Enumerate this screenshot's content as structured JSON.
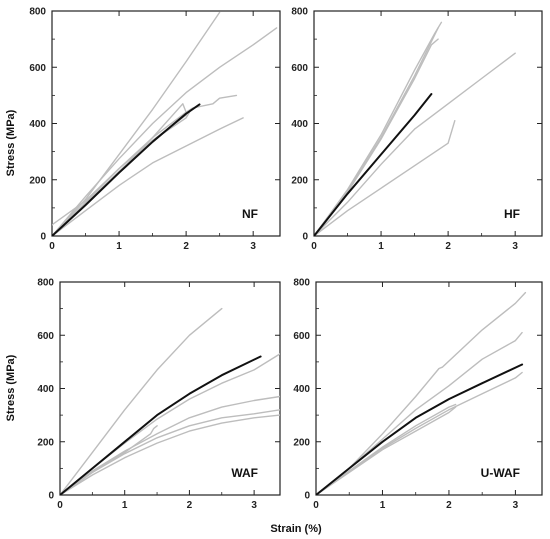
{
  "figure": {
    "ylabel": "Stress (MPa)",
    "xlabel": "Strain (%)"
  },
  "chart_data": [
    {
      "type": "line",
      "panel": "NF",
      "xlim": [
        0,
        3.4
      ],
      "ylim": [
        0,
        800
      ],
      "xticks": [
        0,
        1,
        2,
        3
      ],
      "yticks": [
        0,
        200,
        400,
        600,
        800
      ],
      "series": [
        {
          "role": "specimen",
          "points": [
            [
              0,
              0
            ],
            [
              0.5,
              130
            ],
            [
              1.0,
              290
            ],
            [
              1.5,
              450
            ],
            [
              2.0,
              620
            ],
            [
              2.5,
              795
            ]
          ]
        },
        {
          "role": "specimen",
          "points": [
            [
              0,
              0
            ],
            [
              0.5,
              140
            ],
            [
              1.0,
              275
            ],
            [
              1.5,
              400
            ],
            [
              2.0,
              510
            ],
            [
              2.5,
              600
            ],
            [
              3.0,
              680
            ],
            [
              3.35,
              740
            ]
          ]
        },
        {
          "role": "specimen",
          "points": [
            [
              0,
              0
            ],
            [
              0.5,
              120
            ],
            [
              1.0,
              240
            ],
            [
              1.5,
              350
            ],
            [
              2.0,
              440
            ],
            [
              2.1,
              455
            ],
            [
              2.4,
              470
            ],
            [
              2.5,
              490
            ],
            [
              2.75,
              500
            ]
          ]
        },
        {
          "role": "specimen",
          "points": [
            [
              0,
              0
            ],
            [
              0.5,
              115
            ],
            [
              1.0,
              230
            ],
            [
              1.5,
              340
            ],
            [
              2.0,
              420
            ],
            [
              2.05,
              440
            ]
          ]
        },
        {
          "role": "specimen",
          "points": [
            [
              0,
              0
            ],
            [
              0.5,
              110
            ],
            [
              1.0,
              225
            ],
            [
              1.5,
              350
            ],
            [
              1.95,
              470
            ],
            [
              2.0,
              440
            ]
          ]
        },
        {
          "role": "specimen",
          "points": [
            [
              0,
              0
            ],
            [
              0.5,
              90
            ],
            [
              1.0,
              180
            ],
            [
              1.5,
              260
            ],
            [
              2.0,
              320
            ],
            [
              2.5,
              380
            ],
            [
              2.85,
              420
            ]
          ]
        },
        {
          "role": "specimen",
          "points": [
            [
              0,
              40
            ],
            [
              0.5,
              125
            ],
            [
              1.0,
              240
            ],
            [
              1.5,
              340
            ],
            [
              2.0,
              430
            ]
          ]
        },
        {
          "role": "average",
          "points": [
            [
              0,
              0
            ],
            [
              0.5,
              110
            ],
            [
              1.0,
              225
            ],
            [
              1.5,
              335
            ],
            [
              2.0,
              435
            ],
            [
              2.2,
              468
            ]
          ]
        }
      ]
    },
    {
      "type": "line",
      "panel": "HF",
      "xlim": [
        0,
        3.4
      ],
      "ylim": [
        0,
        800
      ],
      "xticks": [
        0,
        1,
        2,
        3
      ],
      "yticks": [
        0,
        200,
        400,
        600,
        800
      ],
      "series": [
        {
          "role": "specimen",
          "points": [
            [
              0,
              0
            ],
            [
              0.5,
              160
            ],
            [
              1.0,
              350
            ],
            [
              1.5,
              570
            ],
            [
              1.85,
              740
            ]
          ]
        },
        {
          "role": "specimen",
          "points": [
            [
              0,
              0
            ],
            [
              0.5,
              165
            ],
            [
              1.0,
              360
            ],
            [
              1.5,
              590
            ],
            [
              1.8,
              720
            ],
            [
              1.9,
              760
            ]
          ]
        },
        {
          "role": "specimen",
          "points": [
            [
              0,
              0
            ],
            [
              0.5,
              155
            ],
            [
              1.0,
              345
            ],
            [
              1.5,
              560
            ],
            [
              1.75,
              680
            ],
            [
              1.85,
              700
            ]
          ]
        },
        {
          "role": "specimen",
          "points": [
            [
              0,
              0
            ],
            [
              0.5,
              120
            ],
            [
              1.0,
              255
            ],
            [
              1.5,
              380
            ],
            [
              2.0,
              470
            ],
            [
              2.5,
              560
            ],
            [
              3.0,
              650
            ]
          ]
        },
        {
          "role": "specimen",
          "points": [
            [
              0,
              0
            ],
            [
              0.5,
              90
            ],
            [
              1.0,
              170
            ],
            [
              1.5,
              250
            ],
            [
              2.0,
              330
            ],
            [
              2.1,
              410
            ]
          ]
        },
        {
          "role": "average",
          "points": [
            [
              0,
              0
            ],
            [
              0.5,
              150
            ],
            [
              1.0,
              290
            ],
            [
              1.5,
              430
            ],
            [
              1.75,
              505
            ]
          ]
        }
      ]
    },
    {
      "type": "line",
      "panel": "WAF",
      "xlim": [
        0,
        3.4
      ],
      "ylim": [
        0,
        800
      ],
      "xticks": [
        0,
        1,
        2,
        3
      ],
      "yticks": [
        0,
        200,
        400,
        600,
        800
      ],
      "series": [
        {
          "role": "specimen",
          "points": [
            [
              0,
              0
            ],
            [
              0.5,
              160
            ],
            [
              1.0,
              320
            ],
            [
              1.5,
              470
            ],
            [
              2.0,
              600
            ],
            [
              2.5,
              700
            ]
          ]
        },
        {
          "role": "specimen",
          "points": [
            [
              0,
              0
            ],
            [
              0.5,
              100
            ],
            [
              1.0,
              195
            ],
            [
              1.5,
              285
            ],
            [
              2.0,
              360
            ],
            [
              2.5,
              420
            ],
            [
              3.0,
              470
            ],
            [
              3.4,
              530
            ]
          ]
        },
        {
          "role": "specimen",
          "points": [
            [
              0,
              0
            ],
            [
              0.5,
              90
            ],
            [
              1.0,
              165
            ],
            [
              1.5,
              230
            ],
            [
              2.0,
              290
            ],
            [
              2.5,
              330
            ],
            [
              3.0,
              355
            ],
            [
              3.4,
              370
            ]
          ]
        },
        {
          "role": "specimen",
          "points": [
            [
              0,
              0
            ],
            [
              0.5,
              85
            ],
            [
              1.0,
              155
            ],
            [
              1.5,
              215
            ],
            [
              2.0,
              260
            ],
            [
              2.5,
              290
            ],
            [
              3.0,
              305
            ],
            [
              3.4,
              320
            ]
          ]
        },
        {
          "role": "specimen",
          "points": [
            [
              0,
              0
            ],
            [
              0.5,
              85
            ],
            [
              1.0,
              160
            ],
            [
              1.4,
              230
            ],
            [
              1.45,
              250
            ],
            [
              1.5,
              260
            ]
          ]
        },
        {
          "role": "specimen",
          "points": [
            [
              0,
              0
            ],
            [
              0.5,
              75
            ],
            [
              1.0,
              140
            ],
            [
              1.5,
              195
            ],
            [
              2.0,
              240
            ],
            [
              2.5,
              270
            ],
            [
              3.0,
              290
            ],
            [
              3.4,
              300
            ]
          ]
        },
        {
          "role": "average",
          "points": [
            [
              0,
              0
            ],
            [
              0.5,
              100
            ],
            [
              1.0,
              200
            ],
            [
              1.5,
              300
            ],
            [
              2.0,
              380
            ],
            [
              2.5,
              450
            ],
            [
              3.1,
              520
            ]
          ]
        }
      ]
    },
    {
      "type": "line",
      "panel": "U-WAF",
      "xlim": [
        0,
        3.4
      ],
      "ylim": [
        0,
        800
      ],
      "xticks": [
        0,
        1,
        2,
        3
      ],
      "yticks": [
        0,
        200,
        400,
        600,
        800
      ],
      "series": [
        {
          "role": "specimen",
          "points": [
            [
              0,
              0
            ],
            [
              0.5,
              100
            ],
            [
              1.0,
              230
            ],
            [
              1.5,
              370
            ],
            [
              1.85,
              475
            ],
            [
              1.9,
              480
            ],
            [
              2.5,
              620
            ],
            [
              3.0,
              720
            ],
            [
              3.15,
              760
            ]
          ]
        },
        {
          "role": "specimen",
          "points": [
            [
              0,
              0
            ],
            [
              0.5,
              100
            ],
            [
              1.0,
              210
            ],
            [
              1.5,
              320
            ],
            [
              2.0,
              410
            ],
            [
              2.5,
              510
            ],
            [
              3.0,
              580
            ],
            [
              3.1,
              610
            ]
          ]
        },
        {
          "role": "specimen",
          "points": [
            [
              0,
              0
            ],
            [
              0.5,
              90
            ],
            [
              1.0,
              180
            ],
            [
              1.5,
              260
            ],
            [
              2.0,
              330
            ],
            [
              2.1,
              340
            ]
          ]
        },
        {
          "role": "specimen",
          "points": [
            [
              0,
              0
            ],
            [
              0.5,
              85
            ],
            [
              1.0,
              170
            ],
            [
              1.5,
              240
            ],
            [
              2.0,
              310
            ],
            [
              2.1,
              330
            ]
          ]
        },
        {
          "role": "specimen",
          "points": [
            [
              0,
              0
            ],
            [
              0.5,
              88
            ],
            [
              1.0,
              175
            ],
            [
              1.5,
              250
            ],
            [
              2.0,
              320
            ],
            [
              2.5,
              380
            ],
            [
              3.0,
              440
            ],
            [
              3.1,
              460
            ]
          ]
        },
        {
          "role": "average",
          "points": [
            [
              0,
              0
            ],
            [
              0.5,
              100
            ],
            [
              1.0,
              200
            ],
            [
              1.5,
              290
            ],
            [
              2.0,
              360
            ],
            [
              2.5,
              420
            ],
            [
              3.1,
              490
            ]
          ]
        }
      ]
    }
  ],
  "colors": {
    "specimen": "#bdbdbd",
    "average": "#111111",
    "axis": "#222222"
  }
}
